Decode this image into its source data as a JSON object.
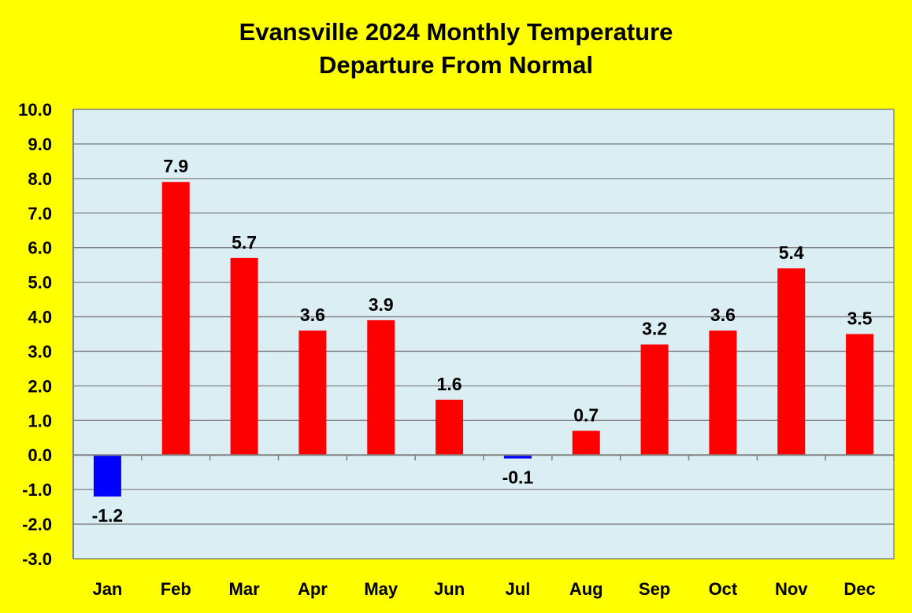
{
  "chart_data": {
    "type": "bar",
    "title_line1": "Evansville 2024 Monthly Temperature",
    "title_line2": "Departure From Normal",
    "xlabel": "",
    "ylabel": "",
    "categories": [
      "Jan",
      "Feb",
      "Mar",
      "Apr",
      "May",
      "Jun",
      "Jul",
      "Aug",
      "Sep",
      "Oct",
      "Nov",
      "Dec"
    ],
    "values": [
      -1.2,
      7.9,
      5.7,
      3.6,
      3.9,
      1.6,
      -0.1,
      0.7,
      3.2,
      3.6,
      5.4,
      3.5
    ],
    "value_labels": [
      "-1.2",
      "7.9",
      "5.7",
      "3.6",
      "3.9",
      "1.6",
      "-0.1",
      "0.7",
      "3.2",
      "3.6",
      "5.4",
      "3.5"
    ],
    "ylim": [
      -3,
      10
    ],
    "ytick_labels": [
      "10.0",
      "9.0",
      "8.0",
      "7.0",
      "6.0",
      "5.0",
      "4.0",
      "3.0",
      "2.0",
      "1.0",
      "0.0",
      "-1.0",
      "-2.0",
      "-3.0"
    ],
    "grid": true,
    "legend": "none",
    "colors": {
      "background": "#FFFF00",
      "plot_area": "#DAEEF3",
      "positive_bar": "#FF0000",
      "negative_bar": "#0000FF",
      "gridline": "#808080",
      "axis": "#808080"
    }
  }
}
